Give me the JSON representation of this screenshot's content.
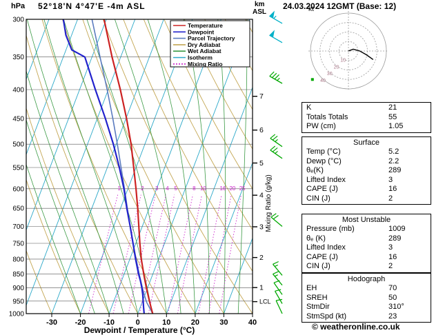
{
  "header": {
    "pressure_unit": "hPa",
    "station": "52°18'N 4°47'E  -4m ASL",
    "datetime": "24.03.2024 12GMT (Base: 12)",
    "km_label": "km",
    "asl_label": "ASL"
  },
  "colors": {
    "temperature": "#cc2222",
    "dewpoint": "#2222cc",
    "parcel": "#5b7bbf",
    "dry_adiabat": "#c3a652",
    "wet_adiabat": "#3a9a44",
    "isotherm": "#2aa8c8",
    "mixing_ratio": "#cc22cc",
    "barb_green": "#00a800",
    "barb_cyan": "#00b0c8",
    "grid": "#555555"
  },
  "legend": {
    "items": [
      {
        "label": "Temperature",
        "color_key": "temperature",
        "dash": false
      },
      {
        "label": "Dewpoint",
        "color_key": "dewpoint",
        "dash": false
      },
      {
        "label": "Parcel Trajectory",
        "color_key": "parcel",
        "dash": false
      },
      {
        "label": "Dry Adiabat",
        "color_key": "dry_adiabat",
        "dash": false
      },
      {
        "label": "Wet Adiabat",
        "color_key": "wet_adiabat",
        "dash": false
      },
      {
        "label": "Isotherm",
        "color_key": "isotherm",
        "dash": false
      },
      {
        "label": "Mixing Ratio",
        "color_key": "mixing_ratio",
        "dash": true
      }
    ]
  },
  "chart_data": {
    "type": "line",
    "subtype": "skew-t-log-p",
    "xlabel": "Dewpoint / Temperature (°C)",
    "mixing_axis_label": "Mixing Ratio (g/kg)",
    "pressure_ticks": [
      300,
      350,
      400,
      450,
      500,
      550,
      600,
      650,
      700,
      750,
      800,
      850,
      900,
      950,
      1000
    ],
    "temp_ticks": [
      -30,
      -20,
      -10,
      0,
      10,
      20,
      30,
      40
    ],
    "km_ticks": [
      {
        "km": 7,
        "p": 411
      },
      {
        "km": 6,
        "p": 472
      },
      {
        "km": 5,
        "p": 540
      },
      {
        "km": 4,
        "p": 616
      },
      {
        "km": 3,
        "p": 701
      },
      {
        "km": 2,
        "p": 795
      },
      {
        "km": 1,
        "p": 899
      }
    ],
    "lcl": {
      "label": "LCL",
      "p": 952
    },
    "isotherms": {
      "min": -80,
      "max": 40,
      "step": 10
    },
    "dry_adiabats": {
      "min": -40,
      "max": 120,
      "step": 10
    },
    "wet_adiabats": {
      "min": -20,
      "max": 60,
      "step": 5
    },
    "mixing_ratio_values": [
      1,
      2,
      3,
      4,
      5,
      8,
      10,
      16,
      20,
      25
    ],
    "series": {
      "temperature": [
        [
          1000,
          5.2
        ],
        [
          975,
          3.8
        ],
        [
          950,
          2.4
        ],
        [
          925,
          1.0
        ],
        [
          900,
          -0.4
        ],
        [
          875,
          -1.8
        ],
        [
          850,
          -3.2
        ],
        [
          800,
          -6.0
        ],
        [
          750,
          -8.6
        ],
        [
          700,
          -11.2
        ],
        [
          650,
          -14.0
        ],
        [
          600,
          -17.2
        ],
        [
          550,
          -20.8
        ],
        [
          500,
          -24.8
        ],
        [
          450,
          -29.8
        ],
        [
          400,
          -35.8
        ],
        [
          350,
          -43.0
        ],
        [
          300,
          -50.8
        ]
      ],
      "dewpoint": [
        [
          1000,
          2.2
        ],
        [
          975,
          1.2
        ],
        [
          950,
          0.2
        ],
        [
          925,
          -0.8
        ],
        [
          900,
          -2.0
        ],
        [
          875,
          -3.4
        ],
        [
          850,
          -5.0
        ],
        [
          800,
          -8.0
        ],
        [
          750,
          -11.0
        ],
        [
          700,
          -14.2
        ],
        [
          650,
          -17.8
        ],
        [
          600,
          -21.4
        ],
        [
          550,
          -25.8
        ],
        [
          500,
          -31.0
        ],
        [
          450,
          -37.2
        ],
        [
          400,
          -44.5
        ],
        [
          350,
          -52.5
        ],
        [
          340,
          -58.0
        ],
        [
          320,
          -62.0
        ],
        [
          300,
          -65.0
        ]
      ],
      "parcel": [
        [
          1000,
          5.2
        ],
        [
          955,
          1.6
        ],
        [
          925,
          -0.3
        ],
        [
          900,
          -1.8
        ],
        [
          850,
          -4.8
        ],
        [
          800,
          -7.8
        ],
        [
          750,
          -11.0
        ],
        [
          700,
          -14.2
        ],
        [
          650,
          -17.6
        ],
        [
          600,
          -21.2
        ],
        [
          550,
          -25.2
        ],
        [
          500,
          -29.6
        ],
        [
          450,
          -34.6
        ],
        [
          400,
          -40.4
        ],
        [
          350,
          -47.2
        ],
        [
          300,
          -55.0
        ]
      ]
    },
    "wind_barbs": [
      {
        "p": 305,
        "speed": 55,
        "dir": 300,
        "color": "cyan"
      },
      {
        "p": 330,
        "speed": 50,
        "dir": 300,
        "color": "cyan"
      },
      {
        "p": 390,
        "speed": 35,
        "dir": 300,
        "color": "green"
      },
      {
        "p": 505,
        "speed": 25,
        "dir": 305,
        "color": "green"
      },
      {
        "p": 530,
        "speed": 25,
        "dir": 305,
        "color": "green"
      },
      {
        "p": 700,
        "speed": 20,
        "dir": 310,
        "color": "green"
      },
      {
        "p": 855,
        "speed": 15,
        "dir": 320,
        "color": "green"
      },
      {
        "p": 890,
        "speed": 15,
        "dir": 320,
        "color": "green"
      },
      {
        "p": 925,
        "speed": 10,
        "dir": 325,
        "color": "green"
      },
      {
        "p": 960,
        "speed": 10,
        "dir": 330,
        "color": "green"
      },
      {
        "p": 1000,
        "speed": 10,
        "dir": 335,
        "color": "green"
      }
    ],
    "hodograph": {
      "unit_label": "kt",
      "ring_values": [
        10,
        20,
        30,
        40
      ],
      "trace_kt": [
        [
          0,
          0
        ],
        [
          5,
          2
        ],
        [
          12,
          0
        ],
        [
          19,
          -4
        ],
        [
          26,
          -9
        ]
      ],
      "marker_kt": [
        -38,
        -30
      ]
    }
  },
  "params": {
    "misc": {
      "rows": [
        {
          "label": "K",
          "value": "21"
        },
        {
          "label": "Totals Totals",
          "value": "55"
        },
        {
          "label": "PW (cm)",
          "value": "1.05"
        }
      ]
    },
    "surface": {
      "title": "Surface",
      "rows": [
        {
          "label": "Temp (°C)",
          "value": "5.2"
        },
        {
          "label": "Dewp (°C)",
          "value": "2.2"
        },
        {
          "label": "θₑ(K)",
          "value": "289"
        },
        {
          "label": "Lifted Index",
          "value": "3"
        },
        {
          "label": "CAPE (J)",
          "value": "16"
        },
        {
          "label": "CIN (J)",
          "value": "2"
        }
      ]
    },
    "most_unstable": {
      "title": "Most Unstable",
      "rows": [
        {
          "label": "Pressure (mb)",
          "value": "1009"
        },
        {
          "label": "θₑ (K)",
          "value": "289"
        },
        {
          "label": "Lifted Index",
          "value": "3"
        },
        {
          "label": "CAPE (J)",
          "value": "16"
        },
        {
          "label": "CIN (J)",
          "value": "2"
        }
      ]
    },
    "hodograph_table": {
      "title": "Hodograph",
      "rows": [
        {
          "label": "EH",
          "value": "70"
        },
        {
          "label": "SREH",
          "value": "50"
        },
        {
          "label": "StmDir",
          "value": "310°"
        },
        {
          "label": "StmSpd (kt)",
          "value": "23"
        }
      ]
    }
  },
  "footer": {
    "copyright": "© weatheronline.co.uk"
  }
}
